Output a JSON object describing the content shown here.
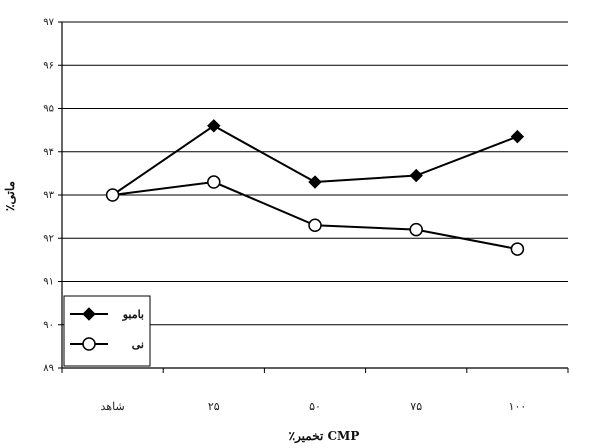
{
  "chart_data": {
    "type": "line",
    "categories": [
      "شاهد",
      "۲۵",
      "۵۰",
      "۷۵",
      "۱۰۰"
    ],
    "series": [
      {
        "name": "بامبو",
        "marker": "diamond-filled",
        "color": "#000000",
        "values": [
          93.0,
          94.6,
          93.3,
          93.45,
          94.35
        ]
      },
      {
        "name": "نی",
        "marker": "circle-open",
        "color": "#000000",
        "values": [
          93.0,
          93.3,
          92.3,
          92.2,
          91.75
        ]
      }
    ],
    "ylim": [
      89,
      97
    ],
    "yticks": [
      89,
      90,
      91,
      92,
      93,
      94,
      95,
      96,
      97
    ],
    "ytick_labels": [
      "۸۹",
      "۹۰",
      "۹۱",
      "۹۲",
      "۹۳",
      "۹۴",
      "۹۵",
      "۹۶",
      "۹۷"
    ],
    "xlabel": "٪تخمیر CMP",
    "ylabel": "٪ماتی",
    "grid": true,
    "legend_position": "bottom-left"
  }
}
